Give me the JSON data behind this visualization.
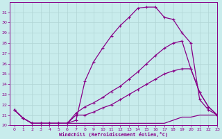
{
  "bg_color": "#c8ecec",
  "line_color": "#880088",
  "grid_color": "#b0d4d4",
  "xlabel": "Windchill (Refroidissement éolien,°C)",
  "xlim": [
    -0.5,
    23
  ],
  "ylim": [
    20,
    32
  ],
  "yticks": [
    20,
    21,
    22,
    23,
    24,
    25,
    26,
    27,
    28,
    29,
    30,
    31
  ],
  "xticks": [
    0,
    1,
    2,
    3,
    4,
    5,
    6,
    7,
    8,
    9,
    10,
    11,
    12,
    13,
    14,
    15,
    16,
    17,
    18,
    19,
    20,
    21,
    22,
    23
  ],
  "series": [
    {
      "x": [
        0,
        1,
        2,
        3,
        4,
        5,
        6,
        7,
        8,
        9,
        10,
        11,
        12,
        13,
        14,
        15,
        16,
        17,
        18,
        19,
        20,
        21,
        22,
        23
      ],
      "y": [
        21.5,
        20.7,
        20.2,
        20.2,
        20.2,
        20.2,
        20.2,
        20.2,
        20.2,
        20.2,
        20.2,
        20.2,
        20.2,
        20.2,
        20.2,
        20.2,
        20.2,
        20.2,
        20.5,
        20.8,
        20.8,
        21.0,
        21.0,
        21.0
      ],
      "marker": null,
      "linewidth": 0.9
    },
    {
      "x": [
        0,
        1,
        2,
        3,
        4,
        5,
        6,
        7,
        8,
        9,
        10,
        11,
        12,
        13,
        14,
        15,
        16,
        17,
        18,
        19,
        20,
        21,
        22,
        23
      ],
      "y": [
        21.5,
        20.7,
        20.2,
        20.2,
        20.2,
        20.2,
        20.2,
        20.5,
        24.3,
        26.2,
        27.5,
        28.7,
        29.7,
        30.5,
        31.4,
        31.5,
        31.5,
        30.5,
        30.3,
        29.0,
        28.0,
        22.5,
        21.5,
        21.0
      ],
      "marker": "+",
      "linewidth": 0.9
    },
    {
      "x": [
        0,
        1,
        2,
        3,
        4,
        5,
        6,
        7,
        8,
        9,
        10,
        11,
        12,
        13,
        14,
        15,
        16,
        17,
        18,
        19,
        20,
        21,
        22,
        23
      ],
      "y": [
        21.5,
        20.7,
        20.2,
        20.2,
        20.2,
        20.2,
        20.2,
        21.2,
        21.8,
        22.2,
        22.7,
        23.3,
        23.8,
        24.5,
        25.2,
        26.0,
        26.8,
        27.5,
        28.0,
        28.2,
        25.5,
        23.2,
        21.8,
        21.0
      ],
      "marker": "+",
      "linewidth": 0.9
    },
    {
      "x": [
        0,
        1,
        2,
        3,
        4,
        5,
        6,
        7,
        8,
        9,
        10,
        11,
        12,
        13,
        14,
        15,
        16,
        17,
        18,
        19,
        20,
        21,
        22,
        23
      ],
      "y": [
        21.5,
        20.7,
        20.2,
        20.2,
        20.2,
        20.2,
        20.2,
        21.0,
        21.0,
        21.3,
        21.7,
        22.0,
        22.5,
        23.0,
        23.5,
        24.0,
        24.5,
        25.0,
        25.3,
        25.5,
        25.5,
        23.2,
        21.8,
        21.0
      ],
      "marker": "+",
      "linewidth": 0.9
    }
  ]
}
